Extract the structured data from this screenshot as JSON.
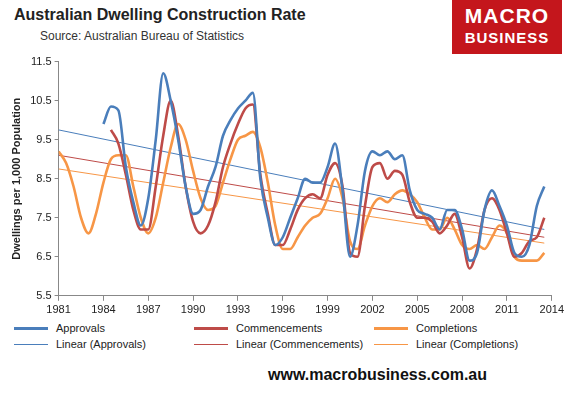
{
  "chart_data": {
    "type": "line",
    "title": "Australian Dwelling Construction Rate",
    "subtitle": "Source: Australian Bureau of Statistics",
    "y_label": "Dwellings per 1,000 Population",
    "annotations": [
      "MACRO",
      "BUSINESS",
      "www.macrobusiness.com.au"
    ],
    "x": [
      1981,
      1981.5,
      1982,
      1982.5,
      1983,
      1983.5,
      1984,
      1984.5,
      1985,
      1985.5,
      1986,
      1986.5,
      1987,
      1987.5,
      1988,
      1988.5,
      1989,
      1989.5,
      1990,
      1990.5,
      1991,
      1991.5,
      1992,
      1992.5,
      1993,
      1993.5,
      1994,
      1994.5,
      1995,
      1995.5,
      1996,
      1996.5,
      1997,
      1997.5,
      1998,
      1998.5,
      1999,
      1999.5,
      2000,
      2000.5,
      2001,
      2001.5,
      2002,
      2002.5,
      2003,
      2003.5,
      2004,
      2004.5,
      2005,
      2005.5,
      2006,
      2006.5,
      2007,
      2007.5,
      2008,
      2008.5,
      2009,
      2009.5,
      2010,
      2010.5,
      2011,
      2011.5,
      2012,
      2012.5,
      2013,
      2013.5
    ],
    "series": [
      {
        "name": "Approvals",
        "type": "line",
        "color": "#4a7ebb",
        "values": [
          null,
          null,
          null,
          null,
          null,
          null,
          9.9,
          10.35,
          10.25,
          8.8,
          7.9,
          7.3,
          8.0,
          9.5,
          11.2,
          10.5,
          9.5,
          8.3,
          7.6,
          7.7,
          8.3,
          8.8,
          9.6,
          10.0,
          10.3,
          10.5,
          10.7,
          8.5,
          7.5,
          6.8,
          7.0,
          7.5,
          8.0,
          8.5,
          8.4,
          8.4,
          8.8,
          9.4,
          8.2,
          6.5,
          7.3,
          8.7,
          9.2,
          9.1,
          9.2,
          9.0,
          9.1,
          8.2,
          7.7,
          7.6,
          7.5,
          7.2,
          7.7,
          7.7,
          7.2,
          6.4,
          6.6,
          7.7,
          8.2,
          7.8,
          7.3,
          6.6,
          6.5,
          6.8,
          7.8,
          8.3
        ]
      },
      {
        "name": "Commencements",
        "type": "line",
        "color": "#be4b48",
        "values": [
          null,
          null,
          null,
          null,
          null,
          null,
          null,
          9.75,
          9.4,
          8.6,
          7.7,
          7.2,
          7.2,
          8.3,
          9.6,
          10.5,
          9.6,
          8.3,
          7.4,
          7.1,
          7.3,
          7.9,
          8.8,
          9.4,
          9.9,
          10.3,
          10.4,
          8.6,
          7.6,
          6.8,
          6.8,
          7.2,
          7.7,
          8.0,
          8.1,
          8.0,
          8.6,
          8.9,
          8.3,
          6.6,
          6.5,
          7.8,
          8.8,
          8.9,
          8.5,
          8.7,
          8.6,
          7.9,
          7.5,
          7.5,
          7.4,
          7.1,
          7.3,
          7.6,
          7.0,
          6.2,
          6.7,
          7.7,
          8.0,
          7.7,
          7.1,
          6.5,
          6.6,
          6.9,
          7.0,
          7.5
        ]
      },
      {
        "name": "Completions",
        "type": "line",
        "color": "#f79646",
        "values": [
          9.2,
          8.9,
          8.3,
          7.5,
          7.1,
          7.6,
          8.4,
          9.0,
          9.1,
          9.1,
          8.3,
          7.5,
          7.1,
          7.5,
          8.4,
          9.3,
          9.9,
          9.5,
          8.7,
          8.0,
          7.7,
          7.8,
          8.4,
          9.0,
          9.5,
          9.6,
          9.7,
          9.3,
          8.4,
          7.3,
          6.7,
          6.7,
          7.0,
          7.3,
          7.5,
          7.6,
          8.0,
          8.5,
          8.0,
          6.9,
          6.7,
          7.3,
          7.8,
          8.0,
          7.9,
          8.1,
          8.2,
          8.1,
          7.9,
          7.5,
          7.2,
          7.2,
          7.5,
          7.2,
          6.8,
          6.7,
          6.8,
          6.7,
          7.0,
          7.3,
          7.1,
          6.5,
          6.4,
          6.4,
          6.4,
          6.6
        ]
      },
      {
        "name": "Linear (Approvals)",
        "type": "trend",
        "color": "#4a7ebb",
        "x": [
          1981,
          2013.5
        ],
        "values": [
          9.75,
          7.2
        ]
      },
      {
        "name": "Linear (Commencements)",
        "type": "trend",
        "color": "#be4b48",
        "x": [
          1981,
          2013.5
        ],
        "values": [
          9.1,
          7.0
        ]
      },
      {
        "name": "Linear (Completions)",
        "type": "trend",
        "color": "#f79646",
        "x": [
          1981,
          2013.5
        ],
        "values": [
          8.75,
          6.85
        ]
      }
    ],
    "xlim": [
      1981,
      2014
    ],
    "xticks": [
      1981,
      1984,
      1987,
      1990,
      1993,
      1996,
      1999,
      2002,
      2005,
      2008,
      2011,
      2014
    ],
    "ylim": [
      5.5,
      11.5
    ],
    "yticks": [
      5.5,
      6.5,
      7.5,
      8.5,
      9.5,
      10.5,
      11.5
    ],
    "grid": false,
    "legend": "bottom"
  }
}
